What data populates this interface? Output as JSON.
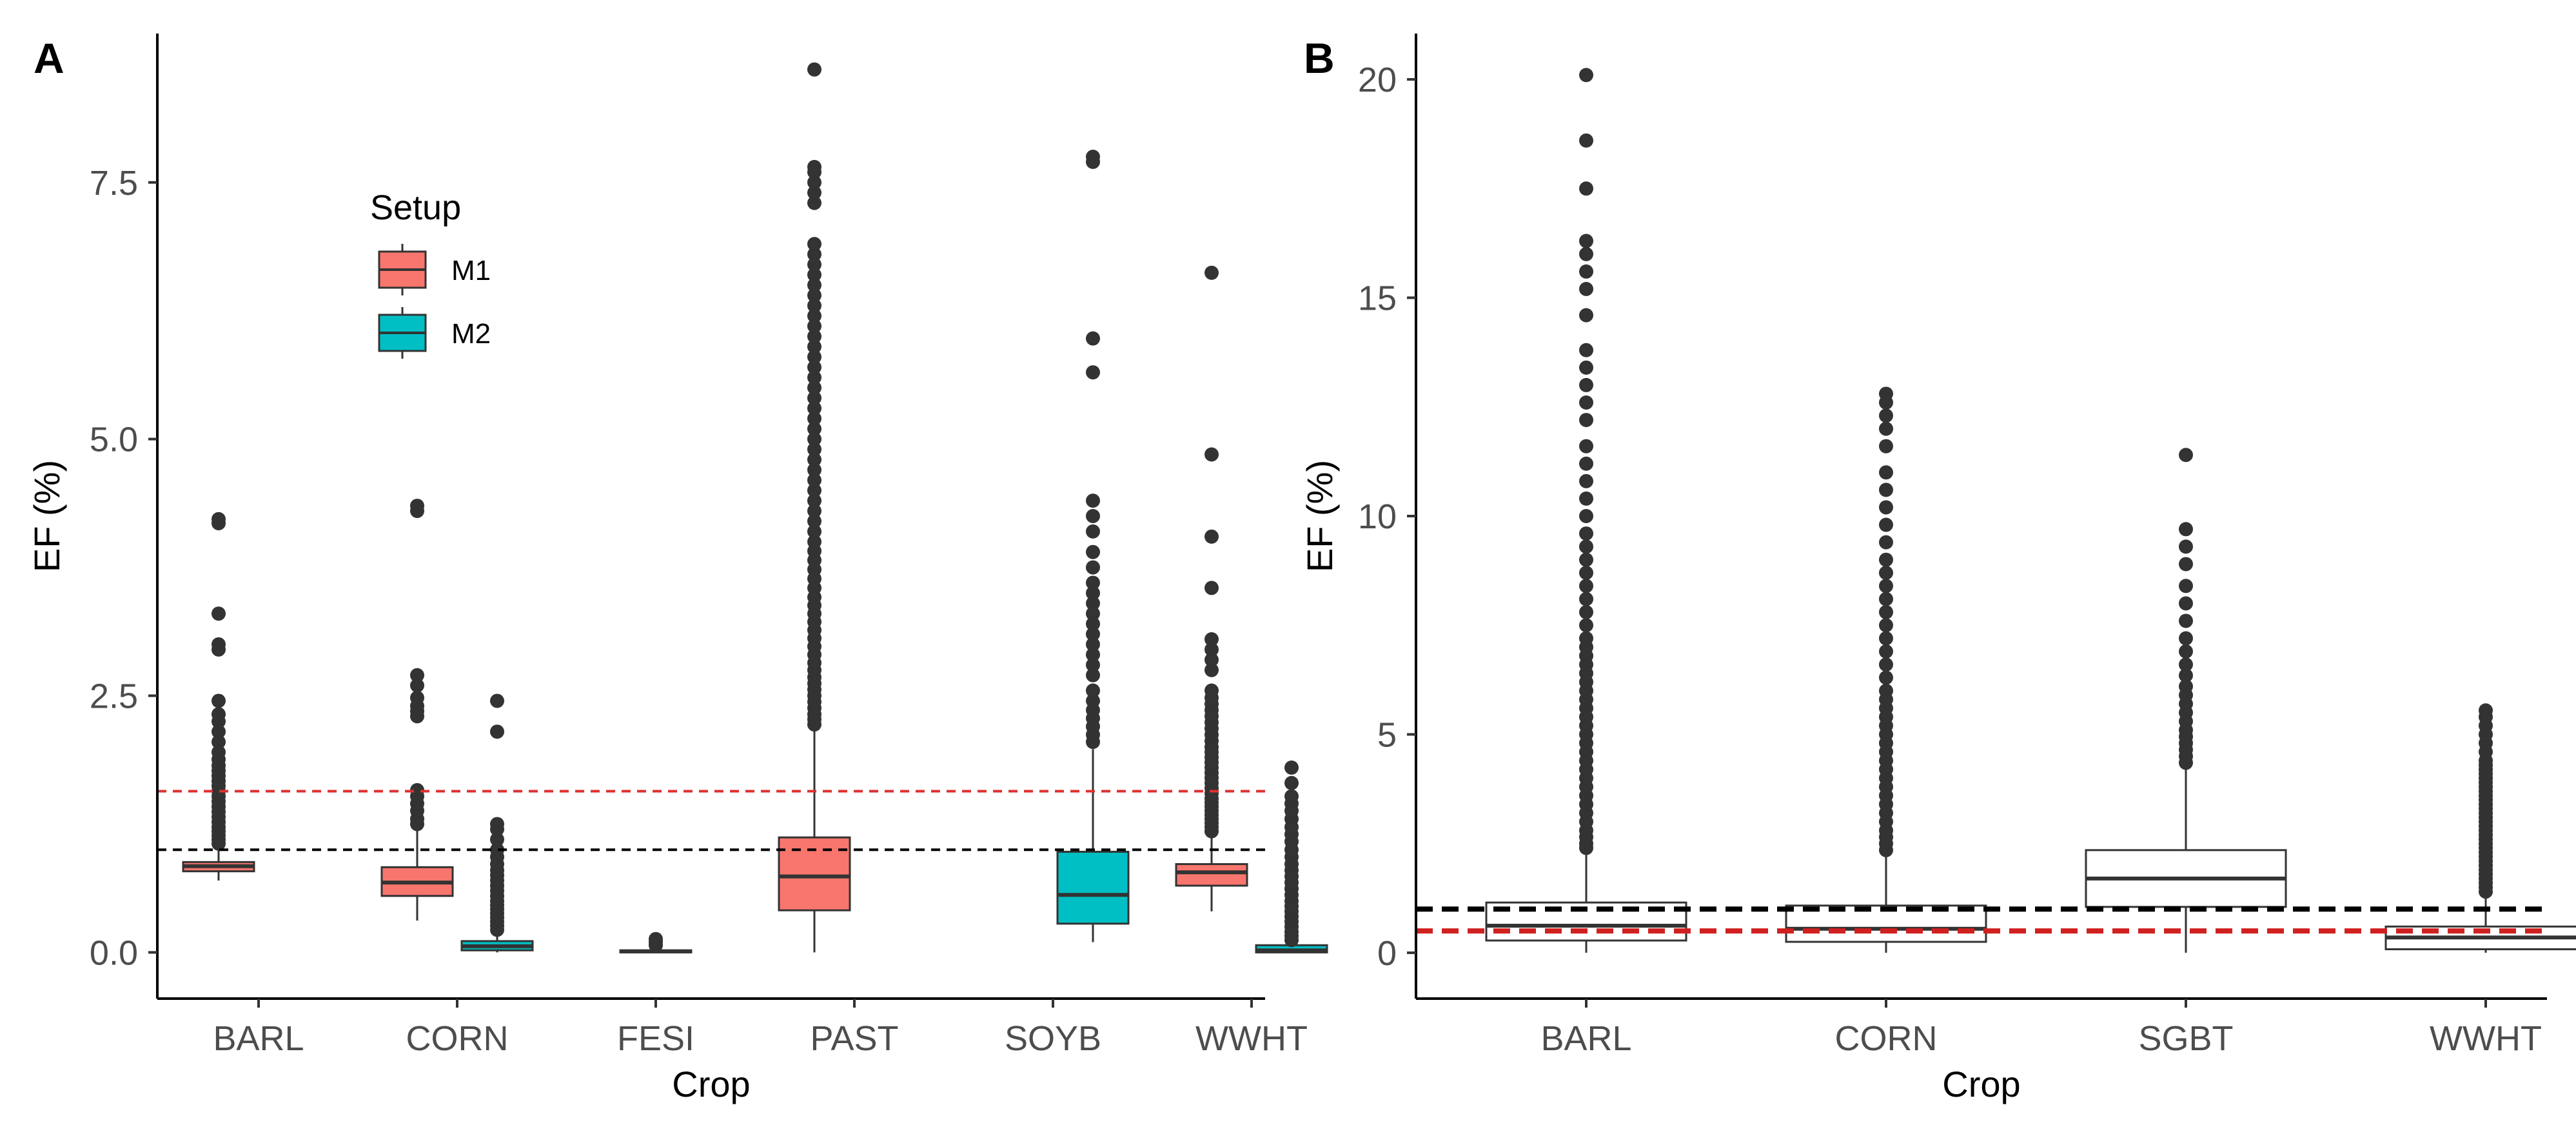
{
  "chart_data": [
    {
      "panel": "A",
      "type": "box",
      "xlabel": "Crop",
      "ylabel": "EF (%)",
      "ylim": [
        -0.45,
        8.95
      ],
      "yticks": [
        0.0,
        2.5,
        5.0,
        7.5
      ],
      "ytick_labels": [
        "0.0",
        "2.5",
        "5.0",
        "7.5"
      ],
      "categories": [
        "BARL",
        "CORN",
        "FESI",
        "PAST",
        "SOYB",
        "WWHT"
      ],
      "legend": {
        "title": "Setup",
        "entries": [
          "M1",
          "M2"
        ],
        "position": "top-left"
      },
      "series_colors": {
        "M1": "#F8766D",
        "M2": "#00BFC4"
      },
      "reference_lines": [
        {
          "y": 1.0,
          "color": "#000000",
          "style": "dashed"
        },
        {
          "y": 1.57,
          "color": "#e03030",
          "style": "dashed"
        }
      ],
      "boxes": [
        {
          "category": "BARL",
          "setup": "M1",
          "q1": 0.79,
          "median": 0.84,
          "q3": 0.88,
          "whisker_low": 0.7,
          "whisker_high": 1.02,
          "outliers": [
            1.06,
            1.1,
            1.14,
            1.18,
            1.22,
            1.27,
            1.32,
            1.37,
            1.42,
            1.47,
            1.52,
            1.57,
            1.62,
            1.67,
            1.72,
            1.77,
            1.82,
            1.88,
            1.95,
            2.05,
            2.15,
            2.25,
            2.32,
            2.45,
            2.95,
            3.0,
            3.3,
            4.18,
            4.22
          ]
        },
        {
          "category": "CORN",
          "setup": "M1",
          "q1": 0.55,
          "median": 0.68,
          "q3": 0.83,
          "whisker_low": 0.31,
          "whisker_high": 1.2,
          "outliers": [
            1.25,
            1.3,
            1.38,
            1.45,
            1.52,
            1.58,
            2.3,
            2.35,
            2.4,
            2.48,
            2.6,
            2.7,
            4.3,
            4.35
          ]
        },
        {
          "category": "CORN",
          "setup": "M2",
          "q1": 0.02,
          "median": 0.06,
          "q3": 0.11,
          "whisker_low": 0.0,
          "whisker_high": 0.2,
          "outliers": [
            0.22,
            0.26,
            0.3,
            0.34,
            0.38,
            0.42,
            0.46,
            0.5,
            0.55,
            0.6,
            0.65,
            0.7,
            0.75,
            0.8,
            0.86,
            0.93,
            1.0,
            1.1,
            1.2,
            1.25,
            2.15,
            2.45
          ]
        },
        {
          "category": "FESI",
          "setup": "M1",
          "q1": 0.0,
          "median": 0.01,
          "q3": 0.02,
          "whisker_low": 0.0,
          "whisker_high": 0.03,
          "outliers": [
            0.07,
            0.1,
            0.13
          ]
        },
        {
          "category": "PAST",
          "setup": "M1",
          "q1": 0.41,
          "median": 0.74,
          "q3": 1.12,
          "whisker_low": 0.0,
          "whisker_high": 2.18,
          "outliers": [
            2.22,
            2.27,
            2.32,
            2.38,
            2.44,
            2.5,
            2.56,
            2.62,
            2.68,
            2.75,
            2.82,
            2.9,
            2.98,
            3.06,
            3.14,
            3.22,
            3.3,
            3.38,
            3.46,
            3.55,
            3.64,
            3.73,
            3.82,
            3.91,
            4.0,
            4.1,
            4.2,
            4.3,
            4.4,
            4.5,
            4.6,
            4.7,
            4.8,
            4.9,
            5.0,
            5.1,
            5.2,
            5.3,
            5.4,
            5.5,
            5.6,
            5.7,
            5.8,
            5.9,
            6.0,
            6.1,
            6.2,
            6.3,
            6.4,
            6.5,
            6.6,
            6.7,
            6.8,
            6.9,
            7.3,
            7.4,
            7.5,
            7.6,
            7.65,
            8.6
          ]
        },
        {
          "category": "SOYB",
          "setup": "M2",
          "q1": 0.28,
          "median": 0.56,
          "q3": 0.98,
          "whisker_low": 0.1,
          "whisker_high": 1.98,
          "outliers": [
            2.05,
            2.12,
            2.2,
            2.28,
            2.36,
            2.45,
            2.55,
            2.7,
            2.8,
            2.9,
            3.0,
            3.1,
            3.2,
            3.3,
            3.4,
            3.5,
            3.6,
            3.75,
            3.9,
            4.1,
            4.25,
            4.4,
            5.65,
            5.98,
            7.7,
            7.75
          ]
        },
        {
          "category": "WWHT",
          "setup": "M1",
          "q1": 0.65,
          "median": 0.78,
          "q3": 0.86,
          "whisker_low": 0.4,
          "whisker_high": 1.15,
          "outliers": [
            1.18,
            1.22,
            1.26,
            1.3,
            1.34,
            1.38,
            1.42,
            1.46,
            1.5,
            1.55,
            1.6,
            1.65,
            1.7,
            1.75,
            1.8,
            1.85,
            1.9,
            1.95,
            2.0,
            2.06,
            2.12,
            2.18,
            2.24,
            2.3,
            2.36,
            2.42,
            2.48,
            2.55,
            2.75,
            2.85,
            2.95,
            3.05,
            3.55,
            4.05,
            4.85,
            6.62
          ]
        },
        {
          "category": "WWHT",
          "setup": "M2",
          "q1": 0.0,
          "median": 0.02,
          "q3": 0.07,
          "whisker_low": 0.0,
          "whisker_high": 0.1,
          "outliers": [
            0.12,
            0.16,
            0.2,
            0.25,
            0.3,
            0.35,
            0.4,
            0.45,
            0.5,
            0.56,
            0.62,
            0.68,
            0.74,
            0.8,
            0.86,
            0.93,
            1.0,
            1.08,
            1.15,
            1.22,
            1.3,
            1.38,
            1.45,
            1.52,
            1.65,
            1.8
          ]
        }
      ]
    },
    {
      "panel": "B",
      "type": "box",
      "xlabel": "Crop",
      "ylabel": "EF (%)",
      "ylim": [
        -1.05,
        21.05
      ],
      "yticks": [
        0,
        5,
        10,
        15,
        20
      ],
      "ytick_labels": [
        "0",
        "5",
        "10",
        "15",
        "20"
      ],
      "categories": [
        "BARL",
        "CORN",
        "SGBT",
        "WWHT"
      ],
      "reference_lines": [
        {
          "y": 1.0,
          "color": "#000000",
          "style": "dashed"
        },
        {
          "y": 0.5,
          "color": "#d02020",
          "style": "dashed"
        }
      ],
      "boxes": [
        {
          "category": "BARL",
          "q1": 0.28,
          "median": 0.62,
          "q3": 1.15,
          "whisker_low": 0.0,
          "whisker_high": 2.35,
          "outliers": [
            2.4,
            2.5,
            2.65,
            2.8,
            3.0,
            3.2,
            3.4,
            3.6,
            3.8,
            4.0,
            4.2,
            4.4,
            4.6,
            4.8,
            5.0,
            5.2,
            5.4,
            5.6,
            5.8,
            6.0,
            6.2,
            6.4,
            6.6,
            6.8,
            7.0,
            7.2,
            7.5,
            7.8,
            8.1,
            8.4,
            8.7,
            9.0,
            9.3,
            9.6,
            10.0,
            10.4,
            10.8,
            11.2,
            11.6,
            12.2,
            12.6,
            13.0,
            13.4,
            13.8,
            14.6,
            15.2,
            15.6,
            16.0,
            16.3,
            17.5,
            18.6,
            20.1
          ]
        },
        {
          "category": "CORN",
          "q1": 0.25,
          "median": 0.55,
          "q3": 1.08,
          "whisker_low": 0.0,
          "whisker_high": 2.3,
          "outliers": [
            2.35,
            2.5,
            2.65,
            2.8,
            3.0,
            3.2,
            3.4,
            3.6,
            3.8,
            4.0,
            4.2,
            4.4,
            4.6,
            4.8,
            5.0,
            5.2,
            5.4,
            5.6,
            5.8,
            6.0,
            6.3,
            6.6,
            6.9,
            7.2,
            7.5,
            7.8,
            8.1,
            8.4,
            8.7,
            9.0,
            9.4,
            9.8,
            10.2,
            10.6,
            11.0,
            11.6,
            12.0,
            12.3,
            12.6,
            12.8
          ]
        },
        {
          "category": "SGBT",
          "q1": 1.05,
          "median": 1.7,
          "q3": 2.35,
          "whisker_low": 0.0,
          "whisker_high": 4.3,
          "outliers": [
            4.35,
            4.5,
            4.65,
            4.8,
            4.95,
            5.1,
            5.3,
            5.5,
            5.7,
            5.9,
            6.1,
            6.35,
            6.6,
            6.9,
            7.2,
            7.6,
            8.0,
            8.4,
            8.9,
            9.3,
            9.7,
            11.4
          ]
        },
        {
          "category": "WWHT",
          "q1": 0.08,
          "median": 0.35,
          "q3": 0.6,
          "whisker_low": 0.0,
          "whisker_high": 1.35,
          "outliers": [
            1.4,
            1.5,
            1.6,
            1.7,
            1.8,
            1.9,
            2.0,
            2.1,
            2.2,
            2.3,
            2.4,
            2.5,
            2.6,
            2.7,
            2.8,
            2.9,
            3.0,
            3.1,
            3.2,
            3.3,
            3.4,
            3.5,
            3.6,
            3.7,
            3.8,
            3.9,
            4.0,
            4.1,
            4.2,
            4.3,
            4.4,
            4.6,
            4.8,
            5.0,
            5.2,
            5.4,
            5.55
          ]
        }
      ]
    }
  ]
}
